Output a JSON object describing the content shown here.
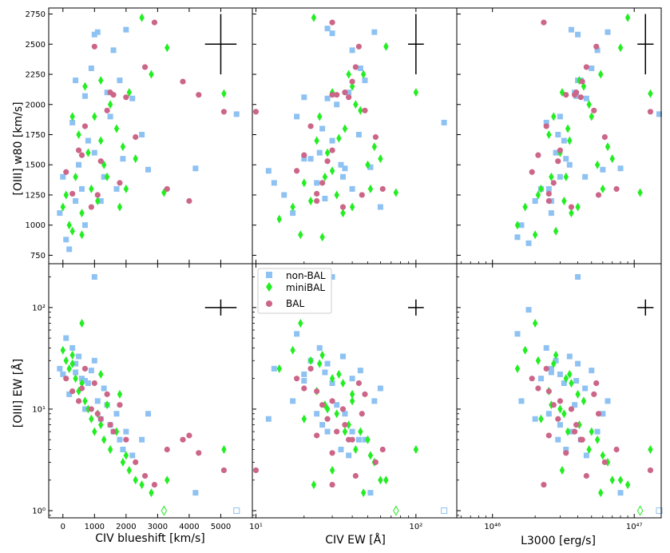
{
  "colors": {
    "nonbal": "#8ec2f2",
    "minibal": "#22ee22",
    "bal": "#cc6688",
    "errbar": "#000000"
  },
  "legend": [
    "non-BAL",
    "miniBAL",
    "BAL"
  ],
  "chart_data": {
    "type": "scatter",
    "grid": false,
    "legend_position": "upper-left of bottom-middle panel",
    "ylabels": {
      "top": "[OIII] w80 [km/s]",
      "bottom": "[OIII] EW [Å]"
    },
    "xlabels": [
      "CIV blueshift [km/s]",
      "CIV EW [Å]",
      "L3000 [erg/s]"
    ],
    "xscale": [
      "linear",
      "log",
      "log"
    ],
    "yscale": {
      "top": "linear",
      "bottom": "log"
    },
    "xlim": [
      [
        -450,
        6000
      ],
      [
        9.5,
        180
      ],
      [
        5.6e+45,
        1.55e+47
      ]
    ],
    "ylim": {
      "top": [
        680,
        2800
      ],
      "bottom": [
        0.85,
        270
      ]
    },
    "xticks": [
      [
        0,
        1000,
        2000,
        3000,
        4000,
        5000
      ],
      [
        10,
        100
      ],
      [
        1e+46,
        1e+47
      ]
    ],
    "xticklabels": [
      [
        "0",
        "1000",
        "2000",
        "3000",
        "4000",
        "5000"
      ],
      [
        "10¹",
        "10²"
      ],
      [
        "10⁴⁶",
        "10⁴⁷"
      ]
    ],
    "yticks_top": [
      750,
      1000,
      1250,
      1500,
      1750,
      2000,
      2250,
      2500,
      2750
    ],
    "yticklabels_top": [
      "750",
      "1000",
      "1250",
      "1500",
      "1750",
      "2000",
      "2250",
      "2500",
      "2750"
    ],
    "yticks_bottom": [
      1,
      10,
      100
    ],
    "yticklabels_bottom": [
      "10⁰",
      "10¹",
      "10²"
    ],
    "error_bars": [
      {
        "panel": "top-0",
        "x": 5000,
        "y": 2500,
        "xerr": 500,
        "yerr": 250
      },
      {
        "panel": "top-1",
        "x": 100,
        "y": 2500,
        "xerr_factor": 1.12,
        "yerr": 250
      },
      {
        "panel": "top-2",
        "x": 1.2e+47,
        "y": 2500,
        "xerr_factor": 1.14,
        "yerr": 250
      },
      {
        "panel": "bottom-0",
        "x": 5000,
        "y": 100,
        "xerr": 500,
        "yerr_factor": 1.2
      },
      {
        "panel": "bottom-1",
        "x": 100,
        "y": 100,
        "xerr_factor": 1.12,
        "yerr_factor": 1.2
      },
      {
        "panel": "bottom-2",
        "x": 1.2e+47,
        "y": 100,
        "xerr_factor": 1.14,
        "yerr_factor": 1.2
      }
    ],
    "series": [
      {
        "name": "non-BAL",
        "marker": "square",
        "points": [
          [
            -100,
            1100,
            13,
            1350,
            2.6e+46,
            1100,
            25,
            25
          ],
          [
            0,
            1400,
            20,
            1550,
            3e+46,
            1400,
            22,
            22
          ],
          [
            100,
            880,
            18,
            1900,
            1.5e+46,
            900,
            50,
            55
          ],
          [
            200,
            800,
            15,
            1250,
            1.8e+46,
            850,
            14,
            95
          ],
          [
            300,
            1850,
            25,
            1600,
            2.4e+46,
            1850,
            40,
            40
          ],
          [
            400,
            2200,
            28,
            2050,
            4e+46,
            2200,
            28,
            28
          ],
          [
            500,
            1500,
            35,
            1400,
            3.5e+46,
            1500,
            33,
            33
          ],
          [
            600,
            1300,
            40,
            1300,
            2.2e+46,
            1300,
            20,
            20
          ],
          [
            700,
            1000,
            17,
            1100,
            1.6e+46,
            1000,
            10,
            12
          ],
          [
            800,
            1700,
            30,
            1700,
            3.2e+46,
            1700,
            18,
            18
          ],
          [
            900,
            2300,
            45,
            2300,
            5e+46,
            2300,
            24,
            24
          ],
          [
            1000,
            1600,
            22,
            1550,
            2.8e+46,
            1600,
            30,
            30
          ],
          [
            1100,
            2600,
            55,
            2600,
            6.5e+46,
            2600,
            12,
            12
          ],
          [
            1200,
            1200,
            12,
            1450,
            2e+46,
            1200,
            8,
            8
          ],
          [
            1300,
            1400,
            60,
            1150,
            4.5e+46,
            1400,
            16,
            16
          ],
          [
            1400,
            2100,
            32,
            2000,
            3.8e+46,
            2100,
            11,
            11
          ],
          [
            1500,
            1900,
            26,
            1800,
            3e+46,
            1900,
            7,
            7
          ],
          [
            1600,
            2450,
            40,
            2450,
            5.5e+46,
            2450,
            6,
            6
          ],
          [
            1700,
            1300,
            24,
            1350,
            2.5e+46,
            1300,
            9,
            9
          ],
          [
            1800,
            2200,
            48,
            2200,
            4.2e+46,
            2200,
            5,
            5
          ],
          [
            1900,
            1550,
            34,
            1500,
            3.3e+46,
            1550,
            4,
            4
          ],
          [
            2000,
            2620,
            28,
            2630,
            3.6e+46,
            2620,
            6,
            6
          ],
          [
            2200,
            2050,
            38,
            2100,
            4.6e+46,
            2050,
            3.5,
            3.5
          ],
          [
            2500,
            1750,
            44,
            1750,
            2.9e+46,
            1750,
            5,
            5
          ],
          [
            2700,
            1460,
            36,
            1470,
            6e+46,
            1460,
            9,
            9
          ],
          [
            4200,
            1470,
            52,
            1480,
            8e+46,
            1470,
            1.5,
            1.5
          ],
          [
            5500,
            1920,
            150,
            1850,
            1.5e+47,
            1920,
            1,
            1
          ],
          [
            1000,
            2580,
            30,
            2590,
            4e+46,
            2580,
            200,
            200
          ],
          [
            400,
            1200,
            27,
            1220,
            2.6e+46,
            1200,
            23,
            23
          ],
          [
            700,
            2070,
            20,
            2060,
            3.9e+46,
            2070,
            19,
            19
          ]
        ]
      },
      {
        "name": "miniBAL",
        "marker": "diamond",
        "points": [
          [
            0,
            1150,
            17,
            1150,
            1.7e+46,
            1150,
            38,
            38
          ],
          [
            100,
            1250,
            22,
            1200,
            2.1e+46,
            1250,
            30,
            30
          ],
          [
            200,
            1000,
            14,
            1050,
            1.5e+46,
            1000,
            25,
            25
          ],
          [
            300,
            950,
            26,
            900,
            2.8e+46,
            950,
            34,
            34
          ],
          [
            400,
            1400,
            30,
            1450,
            3.3e+46,
            1400,
            20,
            20
          ],
          [
            500,
            1750,
            24,
            1700,
            2.5e+46,
            1750,
            15,
            15
          ],
          [
            600,
            1100,
            35,
            1100,
            3.6e+46,
            1100,
            18,
            18
          ],
          [
            700,
            2150,
            40,
            2150,
            4.4e+46,
            2150,
            12,
            12
          ],
          [
            800,
            1600,
            28,
            1600,
            3e+46,
            1600,
            10,
            10
          ],
          [
            900,
            1300,
            20,
            1350,
            2.2e+46,
            1300,
            8,
            8
          ],
          [
            1000,
            1900,
            45,
            1950,
            5e+46,
            1900,
            6,
            6
          ],
          [
            1100,
            1200,
            32,
            1250,
            3.2e+46,
            1200,
            9,
            9
          ],
          [
            1200,
            2200,
            38,
            2250,
            4.1e+46,
            2200,
            7,
            7
          ],
          [
            1300,
            1500,
            50,
            1500,
            5.5e+46,
            1500,
            5,
            5
          ],
          [
            1400,
            1400,
            27,
            1400,
            2.6e+46,
            1400,
            11,
            11
          ],
          [
            1500,
            2000,
            42,
            2000,
            4.8e+46,
            2000,
            4,
            4
          ],
          [
            1700,
            1800,
            36,
            1800,
            3.4e+46,
            1800,
            6,
            6
          ],
          [
            1900,
            1650,
            55,
            1650,
            6.5e+46,
            1650,
            3,
            3
          ],
          [
            2100,
            2100,
            30,
            2100,
            3.1e+46,
            2100,
            2.5,
            2.5
          ],
          [
            2300,
            1550,
            60,
            1550,
            7e+46,
            1550,
            2,
            2
          ],
          [
            2500,
            2720,
            23,
            2720,
            9e+46,
            2720,
            1.8,
            1.8
          ],
          [
            2800,
            2250,
            47,
            2250,
            5.8e+46,
            2250,
            1.5,
            1.5
          ],
          [
            3300,
            2470,
            65,
            2480,
            8e+46,
            2470,
            2,
            2
          ],
          [
            5100,
            2090,
            100,
            2100,
            1.3e+47,
            2090,
            4,
            4
          ],
          [
            1800,
            1150,
            40,
            1150,
            4e+46,
            1150,
            14,
            14
          ],
          [
            3200,
            1270,
            75,
            1270,
            1.1e+47,
            1270,
            1,
            1
          ],
          [
            600,
            920,
            19,
            920,
            2e+46,
            920,
            70,
            70
          ],
          [
            1200,
            1700,
            33,
            1720,
            3.5e+46,
            1700,
            22,
            22
          ],
          [
            300,
            1900,
            25,
            1900,
            2.7e+46,
            1900,
            28,
            28
          ],
          [
            2000,
            1300,
            52,
            1300,
            6e+46,
            1300,
            3.5,
            3.5
          ]
        ]
      },
      {
        "name": "BAL",
        "marker": "circle",
        "points": [
          [
            100,
            1440,
            18,
            1450,
            1.9e+46,
            1440,
            20,
            20
          ],
          [
            300,
            1260,
            24,
            1260,
            2.5e+46,
            1260,
            15,
            15
          ],
          [
            500,
            1620,
            30,
            1620,
            3e+46,
            1620,
            12,
            12
          ],
          [
            700,
            1820,
            22,
            1820,
            2.4e+46,
            1820,
            25,
            25
          ],
          [
            900,
            1150,
            35,
            1150,
            3.6e+46,
            1150,
            10,
            10
          ],
          [
            1000,
            2480,
            44,
            2480,
            5.4e+46,
            2480,
            18,
            18
          ],
          [
            1200,
            1530,
            28,
            1530,
            2.9e+46,
            1530,
            8,
            8
          ],
          [
            1400,
            1950,
            48,
            1950,
            5.2e+46,
            1950,
            14,
            14
          ],
          [
            1600,
            2080,
            32,
            2080,
            3.8e+46,
            2080,
            6,
            6
          ],
          [
            1800,
            1350,
            26,
            1350,
            2.7e+46,
            1350,
            11,
            11
          ],
          [
            2000,
            2060,
            38,
            2060,
            4.2e+46,
            2060,
            5,
            5
          ],
          [
            2300,
            1730,
            56,
            1730,
            6.2e+46,
            1730,
            3,
            3
          ],
          [
            2600,
            2310,
            42,
            2310,
            4.6e+46,
            2310,
            2.2,
            2.2
          ],
          [
            2900,
            2680,
            30,
            2680,
            2.3e+46,
            2680,
            1.8,
            1.8
          ],
          [
            3300,
            1300,
            62,
            1300,
            7.5e+46,
            1300,
            4,
            4
          ],
          [
            3800,
            2190,
            40,
            2190,
            4.3e+46,
            2190,
            5,
            5
          ],
          [
            4000,
            1200,
            24,
            1200,
            2.5e+46,
            1200,
            5.5,
            5.5
          ],
          [
            4300,
            2080,
            30,
            2080,
            3.3e+46,
            2080,
            3.7,
            3.7
          ],
          [
            5100,
            1940,
            10,
            1940,
            1.3e+47,
            1940,
            2.5,
            2.5
          ],
          [
            1100,
            1250,
            46,
            1250,
            5.6e+46,
            1250,
            9,
            9
          ],
          [
            600,
            1580,
            20,
            1580,
            2.1e+46,
            1580,
            16,
            16
          ],
          [
            1500,
            2100,
            36,
            2100,
            3.9e+46,
            2100,
            7,
            7
          ]
        ]
      }
    ]
  }
}
